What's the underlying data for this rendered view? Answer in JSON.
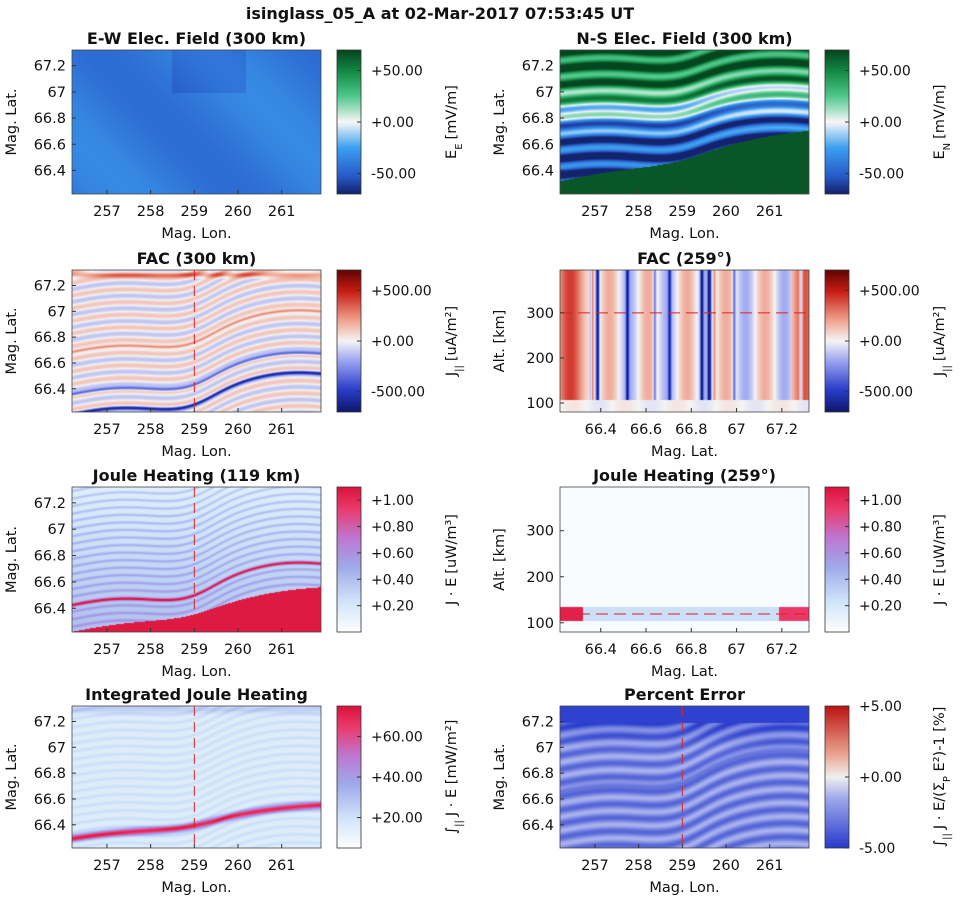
{
  "suptitle": "isinglass_05_A at 02-Mar-2017 07:53:45 UT",
  "chart_data": [
    {
      "type": "heatmap",
      "title": "E-W Elec. Field (300 km)",
      "xlabel": "Mag. Lon.",
      "ylabel": "Mag. Lat.",
      "xticks": [
        "257",
        "258",
        "259",
        "260",
        "261"
      ],
      "yticks": [
        "67.2",
        "67",
        "66.8",
        "66.6",
        "66.4"
      ],
      "xlim": [
        256.2,
        261.9
      ],
      "ylim": [
        66.22,
        67.32
      ],
      "colorbar": {
        "label_main": "E",
        "label_sub": "E",
        "label_unit": "[mV/m]",
        "ticks": [
          "+50.00",
          "+0.00",
          "-50.00"
        ],
        "cmap": "green-white-blue",
        "lim": [
          -70,
          70
        ]
      },
      "field": {
        "kind": "ew",
        "base_value": -38
      },
      "lines": {
        "dashed_vertical": false
      }
    },
    {
      "type": "heatmap",
      "title": "N-S Elec. Field (300 km)",
      "xlabel": "Mag. Lon.",
      "ylabel": "Mag. Lat.",
      "xticks": [
        "257",
        "258",
        "259",
        "260",
        "261"
      ],
      "yticks": [
        "67.2",
        "67",
        "66.8",
        "66.6",
        "66.4"
      ],
      "xlim": [
        256.2,
        261.9
      ],
      "ylim": [
        66.22,
        67.32
      ],
      "colorbar": {
        "label_main": "E",
        "label_sub": "N",
        "label_unit": "[mV/m]",
        "ticks": [
          "+50.00",
          "+0.00",
          "-50.00"
        ],
        "cmap": "green-white-blue",
        "lim": [
          -70,
          70
        ]
      },
      "field": {
        "kind": "ns"
      },
      "lines": {
        "dashed_vertical": false
      }
    },
    {
      "type": "heatmap",
      "title": "FAC (300 km)",
      "xlabel": "Mag. Lon.",
      "ylabel": "Mag. Lat.",
      "xticks": [
        "257",
        "258",
        "259",
        "260",
        "261"
      ],
      "yticks": [
        "67.2",
        "67",
        "66.8",
        "66.6",
        "66.4"
      ],
      "xlim": [
        256.2,
        261.9
      ],
      "ylim": [
        66.22,
        67.32
      ],
      "colorbar": {
        "label_main": "J",
        "label_sub": "||",
        "label_unit": "[uA/m²]",
        "ticks": [
          "+500.00",
          "+0.00",
          "-500.00"
        ],
        "cmap": "red-white-blue",
        "lim": [
          -700,
          700
        ]
      },
      "field": {
        "kind": "fac"
      },
      "lines": {
        "dashed_vertical": true,
        "dashed_x": 259
      }
    },
    {
      "type": "heatmap",
      "title": "FAC (259°)",
      "xlabel": "Mag. Lat.",
      "ylabel": "Alt. [km]",
      "xticks": [
        "66.4",
        "66.6",
        "66.8",
        "67",
        "67.2"
      ],
      "yticks": [
        "300",
        "200",
        "100"
      ],
      "xlim": [
        66.22,
        67.32
      ],
      "ylim": [
        80,
        395
      ],
      "colorbar": {
        "label_main": "J",
        "label_sub": "||",
        "label_unit": "[uA/m²]",
        "ticks": [
          "+500.00",
          "+0.00",
          "-500.00"
        ],
        "cmap": "red-white-blue",
        "lim": [
          -700,
          700
        ]
      },
      "field": {
        "kind": "fac_alt"
      },
      "lines": {
        "dashed_horizontal": true,
        "dashed_y": 300
      }
    },
    {
      "type": "heatmap",
      "title": "Joule Heating (119 km)",
      "xlabel": "Mag. Lon.",
      "ylabel": "Mag. Lat.",
      "xticks": [
        "257",
        "258",
        "259",
        "260",
        "261"
      ],
      "yticks": [
        "67.2",
        "67",
        "66.8",
        "66.6",
        "66.4"
      ],
      "xlim": [
        256.2,
        261.9
      ],
      "ylim": [
        66.22,
        67.32
      ],
      "colorbar": {
        "label_main": "J · E",
        "label_sub": "",
        "label_unit": "[uW/m³]",
        "ticks": [
          "+1.00",
          "+0.80",
          "+0.60",
          "+0.40",
          "+0.20"
        ],
        "cmap": "white-purple-red",
        "lim": [
          0,
          1.1
        ]
      },
      "field": {
        "kind": "joule"
      },
      "lines": {
        "dashed_vertical": true,
        "dashed_x": 259
      }
    },
    {
      "type": "heatmap",
      "title": "Joule Heating (259°)",
      "xlabel": "Mag. Lat.",
      "ylabel": "Alt. [km]",
      "xticks": [
        "66.4",
        "66.6",
        "66.8",
        "67",
        "67.2"
      ],
      "yticks": [
        "300",
        "200",
        "100"
      ],
      "xlim": [
        66.22,
        67.32
      ],
      "ylim": [
        80,
        395
      ],
      "colorbar": {
        "label_main": "J · E",
        "label_sub": "",
        "label_unit": "[uW/m³]",
        "ticks": [
          "+1.00",
          "+0.80",
          "+0.60",
          "+0.40",
          "+0.20"
        ],
        "cmap": "white-purple-red",
        "lim": [
          0,
          1.1
        ]
      },
      "field": {
        "kind": "joule_alt"
      },
      "lines": {
        "dashed_horizontal": true,
        "dashed_y": 119
      }
    },
    {
      "type": "heatmap",
      "title": "Integrated Joule Heating",
      "xlabel": "Mag. Lon.",
      "ylabel": "Mag. Lat.",
      "xticks": [
        "257",
        "258",
        "259",
        "260",
        "261"
      ],
      "yticks": [
        "67.2",
        "67",
        "66.8",
        "66.6",
        "66.4"
      ],
      "xlim": [
        256.2,
        261.9
      ],
      "ylim": [
        66.22,
        67.32
      ],
      "colorbar": {
        "label_main": "∫",
        "label_sub": "||",
        "label_unit": "J · E [mW/m²]",
        "ticks": [
          "+60.00",
          "+40.00",
          "+20.00"
        ],
        "cmap": "white-purple-red",
        "lim": [
          5,
          75
        ]
      },
      "field": {
        "kind": "intjoule"
      },
      "lines": {
        "dashed_vertical": true,
        "dashed_x": 259
      }
    },
    {
      "type": "heatmap",
      "title": "Percent Error",
      "xlabel": "Mag. Lon.",
      "ylabel": "Mag. Lat.",
      "xticks": [
        "257",
        "258",
        "259",
        "260",
        "261"
      ],
      "yticks": [
        "67.2",
        "67",
        "66.8",
        "66.6",
        "66.4"
      ],
      "xlim": [
        256.2,
        261.9
      ],
      "ylim": [
        66.22,
        67.32
      ],
      "colorbar": {
        "label_main": "∫",
        "label_sub": "||",
        "label_unit": "J · E/(Σ",
        "label_sub2": "P",
        "label_unit2": " E²)-1 [%]",
        "ticks": [
          "+5.00",
          "+0.00",
          "-5.00"
        ],
        "cmap": "red-white-blue-pct",
        "lim": [
          -5,
          5
        ]
      },
      "field": {
        "kind": "pcterr"
      },
      "lines": {
        "dashed_vertical": true,
        "dashed_x": 259
      }
    }
  ]
}
